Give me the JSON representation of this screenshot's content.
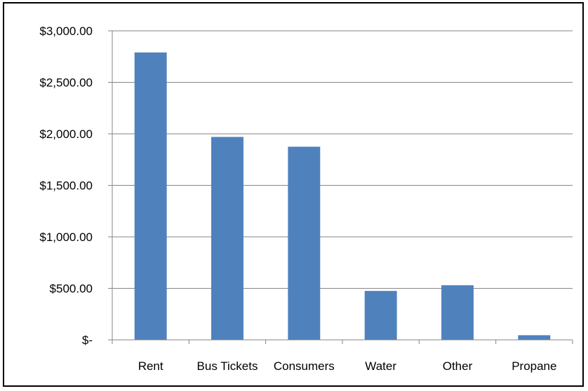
{
  "chart_data": {
    "type": "bar",
    "categories": [
      "Rent",
      "Bus Tickets",
      "Consumers",
      "Water",
      "Other",
      "Propane"
    ],
    "values": [
      2790,
      1970,
      1875,
      475,
      530,
      45
    ],
    "ylim": [
      0,
      3000
    ],
    "yticks": [
      {
        "value": 0,
        "label": "$-"
      },
      {
        "value": 500,
        "label": "$500.00"
      },
      {
        "value": 1000,
        "label": "$1,000.00"
      },
      {
        "value": 1500,
        "label": "$1,500.00"
      },
      {
        "value": 2000,
        "label": "$2,000.00"
      },
      {
        "value": 2500,
        "label": "$2,500.00"
      },
      {
        "value": 3000,
        "label": "$3,000.00"
      }
    ],
    "grid": true,
    "legend": "none",
    "colors": {
      "bar": "#4F81BD",
      "gridline": "#868686",
      "axis": "#868686"
    }
  }
}
